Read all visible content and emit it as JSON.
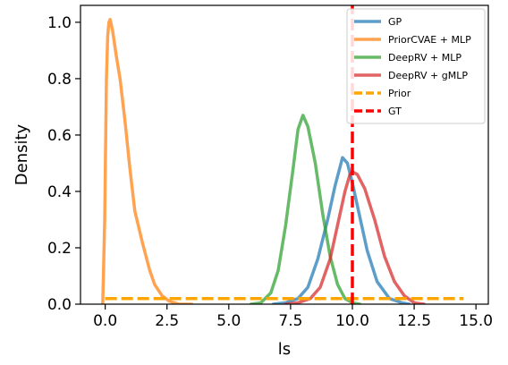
{
  "chart_data": {
    "type": "line",
    "title": "",
    "xlabel": "ls",
    "ylabel": "Density",
    "xlim": [
      -1.0,
      15.5
    ],
    "ylim": [
      0.0,
      1.06
    ],
    "xticks": [
      0.0,
      2.5,
      5.0,
      7.5,
      10.0,
      12.5,
      15.0
    ],
    "xtick_labels": [
      "0.0",
      "2.5",
      "5.0",
      "7.5",
      "10.0",
      "12.5",
      "15.0"
    ],
    "yticks": [
      0.0,
      0.2,
      0.4,
      0.6,
      0.8,
      1.0
    ],
    "ytick_labels": [
      "0.0",
      "0.2",
      "0.4",
      "0.6",
      "0.8",
      "1.0"
    ],
    "grid": false,
    "legend_position": "top-right",
    "series": [
      {
        "name": "GP",
        "color": "#1f77b4",
        "style": "solid",
        "x": [
          6.8,
          7.3,
          7.8,
          8.2,
          8.6,
          9.0,
          9.3,
          9.6,
          9.8,
          10.0,
          10.3,
          10.6,
          11.0,
          11.5,
          12.0,
          12.3
        ],
        "y": [
          0.0,
          0.005,
          0.02,
          0.06,
          0.16,
          0.3,
          0.42,
          0.52,
          0.5,
          0.43,
          0.31,
          0.19,
          0.08,
          0.02,
          0.005,
          0.0
        ]
      },
      {
        "name": "PriorCVAE + MLP",
        "color": "#ff7f0e",
        "style": "solid",
        "x": [
          -0.1,
          -0.02,
          0.05,
          0.1,
          0.15,
          0.2,
          0.3,
          0.45,
          0.6,
          0.8,
          1.0,
          1.2,
          1.5,
          1.8,
          2.0,
          2.3,
          2.6,
          3.0,
          3.5
        ],
        "y": [
          0.0,
          0.3,
          0.8,
          0.95,
          1.0,
          1.01,
          0.97,
          0.88,
          0.8,
          0.65,
          0.48,
          0.33,
          0.22,
          0.12,
          0.07,
          0.03,
          0.01,
          0.0,
          0.0
        ]
      },
      {
        "name": "DeepRV + MLP",
        "color": "#2ca02c",
        "style": "solid",
        "x": [
          5.9,
          6.3,
          6.7,
          7.0,
          7.3,
          7.6,
          7.8,
          8.0,
          8.2,
          8.5,
          8.8,
          9.1,
          9.4,
          9.7,
          10.0,
          10.3
        ],
        "y": [
          0.0,
          0.005,
          0.04,
          0.12,
          0.28,
          0.48,
          0.62,
          0.67,
          0.63,
          0.5,
          0.32,
          0.17,
          0.07,
          0.02,
          0.005,
          0.0
        ]
      },
      {
        "name": "DeepRV + gMLP",
        "color": "#d62728",
        "style": "solid",
        "x": [
          7.3,
          7.8,
          8.3,
          8.7,
          9.1,
          9.4,
          9.7,
          9.9,
          10.0,
          10.2,
          10.5,
          10.9,
          11.3,
          11.7,
          12.1,
          12.5,
          12.9
        ],
        "y": [
          0.0,
          0.005,
          0.02,
          0.06,
          0.16,
          0.28,
          0.4,
          0.46,
          0.47,
          0.46,
          0.41,
          0.3,
          0.17,
          0.08,
          0.03,
          0.005,
          0.0
        ]
      },
      {
        "name": "Prior",
        "color": "#ffa500",
        "style": "dashed",
        "x": [
          0.0,
          14.5
        ],
        "y": [
          0.02,
          0.02
        ]
      },
      {
        "name": "GT",
        "color": "#ff0000",
        "style": "dashed-vertical",
        "x": [
          10.0,
          10.0
        ],
        "y": [
          0.0,
          1.06
        ]
      }
    ]
  }
}
